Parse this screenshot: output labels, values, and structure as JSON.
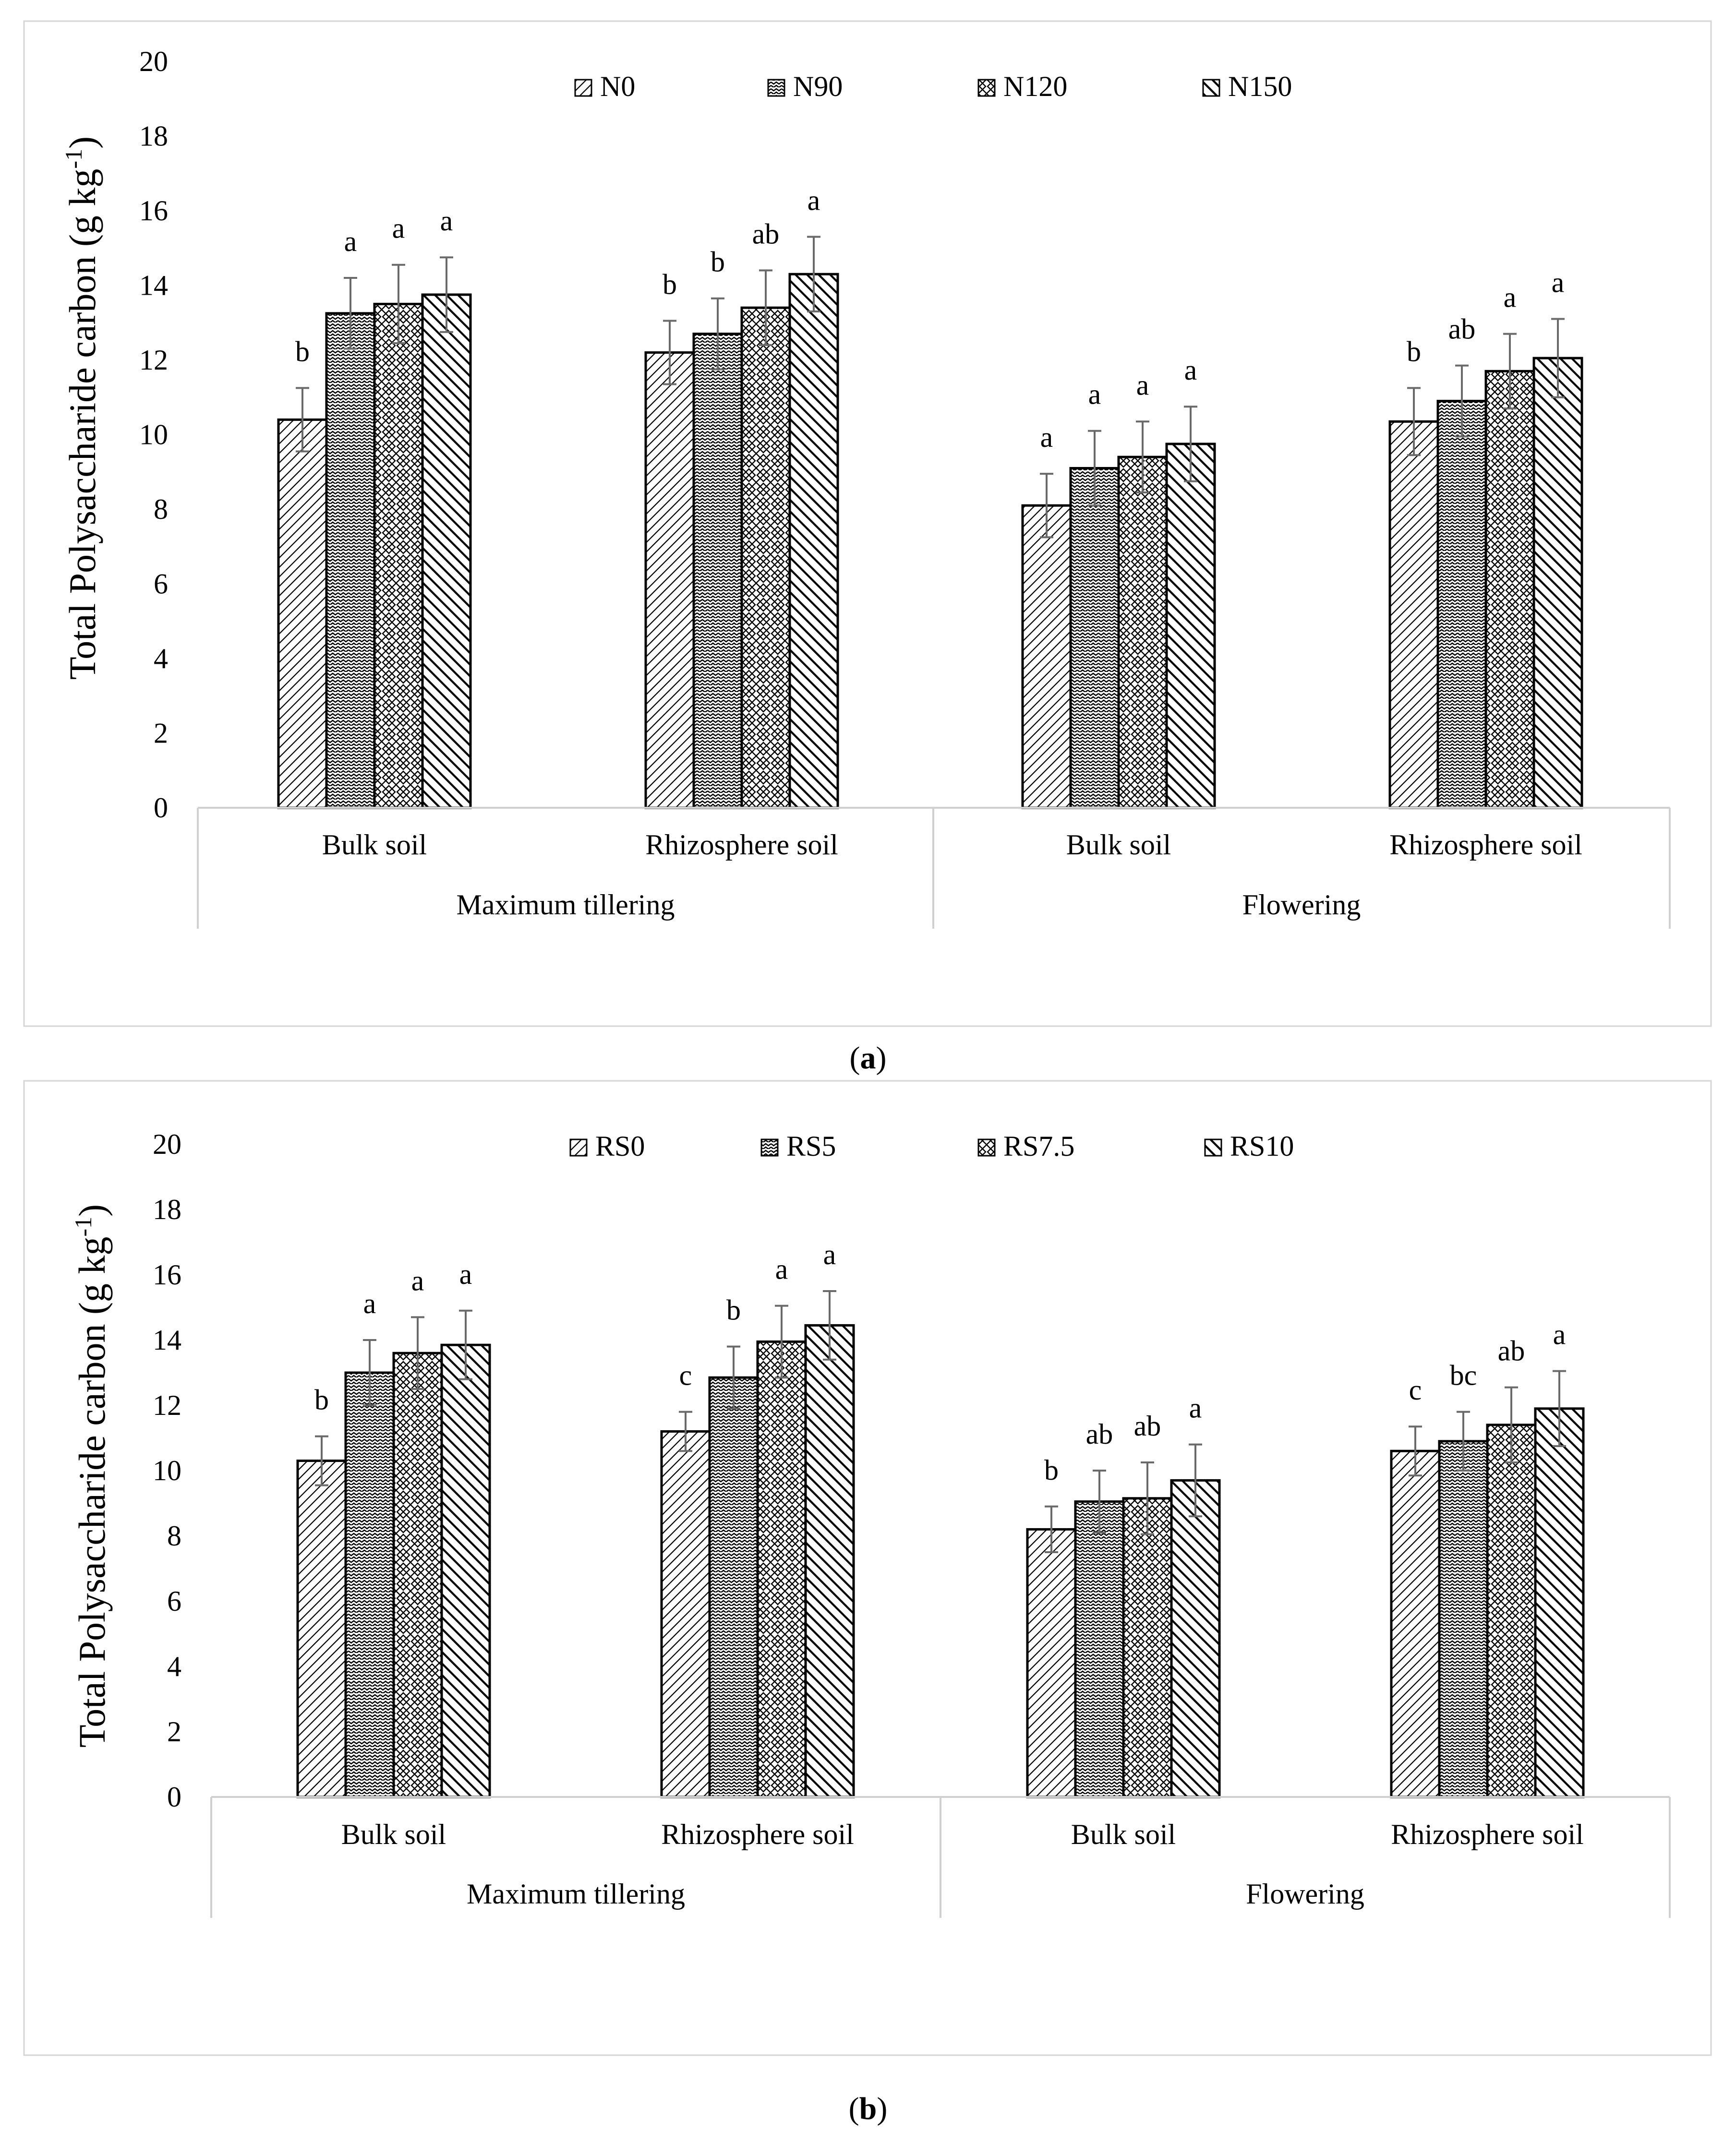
{
  "panel_labels": [
    "a",
    "b"
  ],
  "chart_data": [
    {
      "type": "bar",
      "panel": "a",
      "ylabel": "Total Polysaccharide carbon (g kg-1)",
      "ylabel_parts": {
        "main": "Total Polysaccharide carbon (g kg",
        "sup": "-1",
        "end": ")"
      },
      "ylim": [
        0,
        20
      ],
      "yticks": [
        "0",
        "2",
        "4",
        "6",
        "8",
        "10",
        "12",
        "14",
        "16",
        "18",
        "20"
      ],
      "grid": false,
      "legend_position": "top-center",
      "categories": [
        "Bulk soil",
        "Rhizosphere soil",
        "Bulk soil",
        "Rhizosphere soil"
      ],
      "groups": [
        {
          "label": "Maximum tillering",
          "span": 2
        },
        {
          "label": "Flowering",
          "span": 2
        }
      ],
      "series": [
        {
          "name": "N0",
          "pattern": "diag-dense",
          "values": [
            10.4,
            12.2,
            8.1,
            10.35
          ],
          "errors": [
            0.85,
            0.85,
            0.85,
            0.9
          ],
          "letters": [
            "b",
            "b",
            "a",
            "b"
          ]
        },
        {
          "name": "N90",
          "pattern": "wave",
          "values": [
            13.25,
            12.7,
            9.1,
            10.9
          ],
          "errors": [
            0.95,
            0.95,
            1.0,
            0.95
          ],
          "letters": [
            "a",
            "b",
            "a",
            "ab"
          ]
        },
        {
          "name": "N120",
          "pattern": "lattice",
          "values": [
            13.5,
            13.4,
            9.4,
            11.7
          ],
          "errors": [
            1.05,
            1.0,
            0.95,
            1.0
          ],
          "letters": [
            "a",
            "ab",
            "a",
            "a"
          ]
        },
        {
          "name": "N150",
          "pattern": "diag-bold",
          "values": [
            13.75,
            14.3,
            9.75,
            12.05
          ],
          "errors": [
            1.0,
            1.0,
            1.0,
            1.05
          ],
          "letters": [
            "a",
            "a",
            "a",
            "a"
          ]
        }
      ]
    },
    {
      "type": "bar",
      "panel": "b",
      "ylabel": "Total Polysaccharide carbon (g kg-1)",
      "ylabel_parts": {
        "main": "Total Polysaccharide carbon (g kg",
        "sup": "-1",
        "end": ")"
      },
      "ylim": [
        0,
        20
      ],
      "yticks": [
        "0",
        "2",
        "4",
        "6",
        "8",
        "10",
        "12",
        "14",
        "16",
        "18",
        "20"
      ],
      "grid": false,
      "legend_position": "top-center",
      "categories": [
        "Bulk soil",
        "Rhizosphere soil",
        "Bulk soil",
        "Rhizosphere soil"
      ],
      "groups": [
        {
          "label": "Maximum tillering",
          "span": 2
        },
        {
          "label": "Flowering",
          "span": 2
        }
      ],
      "series": [
        {
          "name": "RS0",
          "pattern": "diag-dense",
          "values": [
            10.3,
            11.2,
            8.2,
            10.6
          ],
          "errors": [
            0.75,
            0.6,
            0.7,
            0.75
          ],
          "letters": [
            "b",
            "c",
            "b",
            "c"
          ]
        },
        {
          "name": "RS5",
          "pattern": "wave",
          "values": [
            13.0,
            12.85,
            9.05,
            10.9
          ],
          "errors": [
            1.0,
            0.95,
            0.95,
            0.9
          ],
          "letters": [
            "a",
            "b",
            "ab",
            "bc"
          ]
        },
        {
          "name": "RS7.5",
          "pattern": "lattice",
          "values": [
            13.6,
            13.95,
            9.15,
            11.4
          ],
          "errors": [
            1.1,
            1.1,
            1.1,
            1.15
          ],
          "letters": [
            "a",
            "a",
            "ab",
            "ab"
          ]
        },
        {
          "name": "RS10",
          "pattern": "diag-bold",
          "values": [
            13.85,
            14.45,
            9.7,
            11.9
          ],
          "errors": [
            1.05,
            1.05,
            1.1,
            1.15
          ],
          "letters": [
            "a",
            "a",
            "a",
            "a"
          ]
        }
      ]
    }
  ]
}
